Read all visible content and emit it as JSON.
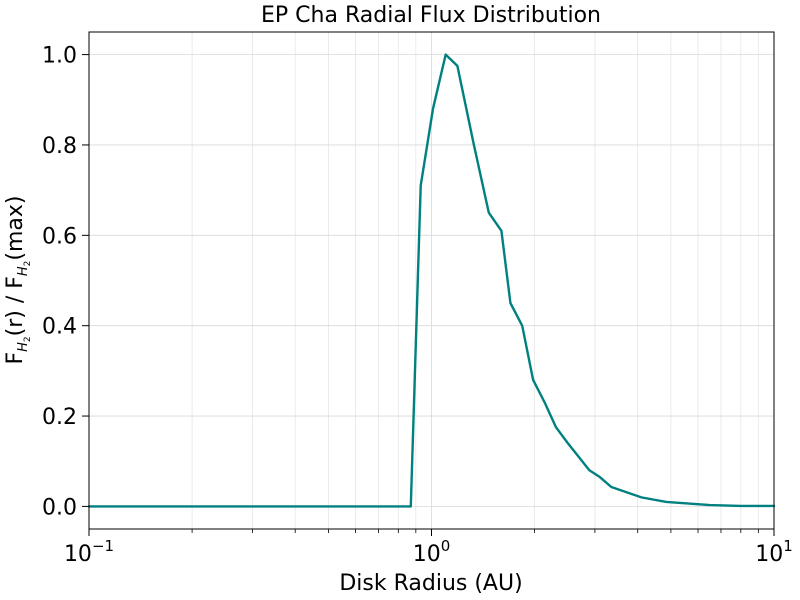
{
  "chart_data": {
    "type": "line",
    "title": "EP Cha Radial Flux Distribution",
    "xlabel": "Disk Radius (AU)",
    "ylabel": {
      "base1": "F",
      "sub1": "H",
      "subsub1": "2",
      "mid": "(r) / F",
      "sub2": "H",
      "subsub2": "2",
      "tail": "(max)"
    },
    "xscale": "log",
    "xlim": [
      0.1,
      10
    ],
    "ylim": [
      -0.05,
      1.05
    ],
    "x_ticks": [
      {
        "value": 0.1,
        "base": "10",
        "exp": "−1"
      },
      {
        "value": 1,
        "base": "10",
        "exp": "0"
      },
      {
        "value": 10,
        "base": "10",
        "exp": "1"
      }
    ],
    "y_ticks": [
      {
        "value": 0.0,
        "label": "0.0"
      },
      {
        "value": 0.2,
        "label": "0.2"
      },
      {
        "value": 0.4,
        "label": "0.4"
      },
      {
        "value": 0.6,
        "label": "0.6"
      },
      {
        "value": 0.8,
        "label": "0.8"
      },
      {
        "value": 1.0,
        "label": "1.0"
      }
    ],
    "grid": true,
    "legend": "none",
    "line_color": "#008080",
    "series": [
      {
        "x": [
          0.1,
          0.87,
          0.93,
          1.01,
          1.1,
          1.19,
          1.33,
          1.47,
          1.6,
          1.7,
          1.84,
          1.98,
          2.14,
          2.31,
          2.5,
          2.89,
          3.1,
          3.35,
          4.1,
          4.85,
          6.5,
          8.0,
          10.0
        ],
        "y": [
          0.0,
          0.0,
          0.71,
          0.88,
          1.0,
          0.975,
          0.8,
          0.65,
          0.61,
          0.45,
          0.4,
          0.28,
          0.23,
          0.175,
          0.14,
          0.08,
          0.065,
          0.043,
          0.02,
          0.01,
          0.003,
          0.001,
          0.001
        ]
      }
    ]
  }
}
